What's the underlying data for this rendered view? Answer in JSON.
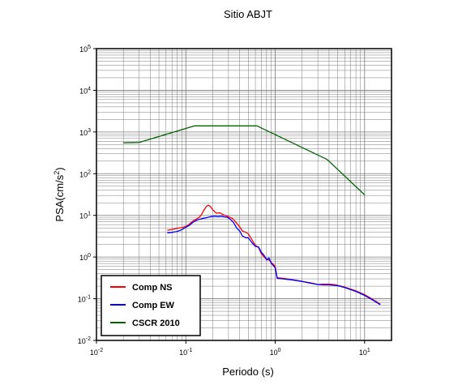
{
  "chart_data": {
    "type": "line",
    "title": "Sitio ABJT",
    "xlabel": "Periodo (s)",
    "ylabel_base": "PSA(cm/s",
    "ylabel_exp": "2",
    "ylabel_close": ")",
    "x_scale": "log",
    "y_scale": "log",
    "xlim": [
      0.01,
      20
    ],
    "ylim": [
      0.01,
      100000
    ],
    "grid": true,
    "legend_position": "bottom-left",
    "x_ticks": [
      {
        "base": "10",
        "exp": "-2",
        "value": 0.01
      },
      {
        "base": "10",
        "exp": "-1",
        "value": 0.1
      },
      {
        "base": "10",
        "exp": "0",
        "value": 1
      },
      {
        "base": "10",
        "exp": "1",
        "value": 10
      }
    ],
    "y_ticks": [
      {
        "base": "10",
        "exp": "-2",
        "value": 0.01
      },
      {
        "base": "10",
        "exp": "-1",
        "value": 0.1
      },
      {
        "base": "10",
        "exp": "0",
        "value": 1
      },
      {
        "base": "10",
        "exp": "1",
        "value": 10
      },
      {
        "base": "10",
        "exp": "2",
        "value": 100
      },
      {
        "base": "10",
        "exp": "3",
        "value": 1000
      },
      {
        "base": "10",
        "exp": "4",
        "value": 10000
      },
      {
        "base": "10",
        "exp": "5",
        "value": 100000
      }
    ],
    "series": [
      {
        "name": "Comp NS",
        "color": "#ff0000",
        "points": [
          [
            0.062,
            4.4
          ],
          [
            0.07,
            4.6
          ],
          [
            0.08,
            4.9
          ],
          [
            0.09,
            5.1
          ],
          [
            0.1,
            5.4
          ],
          [
            0.11,
            6.2
          ],
          [
            0.12,
            7.3
          ],
          [
            0.13,
            8.1
          ],
          [
            0.14,
            8.8
          ],
          [
            0.15,
            10.5
          ],
          [
            0.16,
            13.5
          ],
          [
            0.17,
            16.5
          ],
          [
            0.18,
            17.5
          ],
          [
            0.19,
            16
          ],
          [
            0.2,
            13.5
          ],
          [
            0.22,
            11.3
          ],
          [
            0.24,
            11.5
          ],
          [
            0.26,
            10.5
          ],
          [
            0.28,
            9.8
          ],
          [
            0.3,
            9.3
          ],
          [
            0.33,
            8.5
          ],
          [
            0.36,
            7
          ],
          [
            0.4,
            5.3
          ],
          [
            0.43,
            4.2
          ],
          [
            0.46,
            4.0
          ],
          [
            0.5,
            3.6
          ],
          [
            0.55,
            2.6
          ],
          [
            0.6,
            1.9
          ],
          [
            0.65,
            1.7
          ],
          [
            0.7,
            1.2
          ],
          [
            0.75,
            1.0
          ],
          [
            0.8,
            0.9
          ],
          [
            0.85,
            0.85
          ],
          [
            0.9,
            0.75
          ],
          [
            1.0,
            0.6
          ],
          [
            1.05,
            0.32
          ],
          [
            1.2,
            0.31
          ],
          [
            1.5,
            0.29
          ],
          [
            2.0,
            0.26
          ],
          [
            2.5,
            0.24
          ],
          [
            3.0,
            0.22
          ],
          [
            3.5,
            0.225
          ],
          [
            4.0,
            0.225
          ],
          [
            4.5,
            0.22
          ],
          [
            5.0,
            0.21
          ],
          [
            6.0,
            0.19
          ],
          [
            7.0,
            0.17
          ],
          [
            8.0,
            0.155
          ],
          [
            10.0,
            0.125
          ],
          [
            12.0,
            0.1
          ],
          [
            15.0,
            0.074
          ]
        ]
      },
      {
        "name": "Comp EW",
        "color": "#0000ff",
        "points": [
          [
            0.062,
            3.8
          ],
          [
            0.07,
            3.9
          ],
          [
            0.08,
            4.1
          ],
          [
            0.09,
            4.5
          ],
          [
            0.1,
            5.2
          ],
          [
            0.11,
            5.8
          ],
          [
            0.12,
            6.8
          ],
          [
            0.13,
            7.5
          ],
          [
            0.14,
            8.0
          ],
          [
            0.15,
            8.3
          ],
          [
            0.17,
            8.8
          ],
          [
            0.19,
            9.3
          ],
          [
            0.21,
            9.6
          ],
          [
            0.23,
            9.4
          ],
          [
            0.25,
            9.6
          ],
          [
            0.27,
            9.2
          ],
          [
            0.29,
            9.0
          ],
          [
            0.31,
            8.3
          ],
          [
            0.34,
            6.8
          ],
          [
            0.37,
            5.0
          ],
          [
            0.4,
            4.2
          ],
          [
            0.43,
            3.2
          ],
          [
            0.47,
            2.9
          ],
          [
            0.5,
            2.9
          ],
          [
            0.55,
            2.2
          ],
          [
            0.6,
            1.8
          ],
          [
            0.65,
            1.75
          ],
          [
            0.7,
            1.3
          ],
          [
            0.75,
            1.1
          ],
          [
            0.8,
            0.85
          ],
          [
            0.85,
            0.95
          ],
          [
            0.9,
            0.72
          ],
          [
            1.0,
            0.55
          ],
          [
            1.05,
            0.31
          ],
          [
            1.2,
            0.3
          ],
          [
            1.5,
            0.285
          ],
          [
            2.0,
            0.26
          ],
          [
            2.5,
            0.235
          ],
          [
            3.0,
            0.22
          ],
          [
            3.5,
            0.215
          ],
          [
            4.0,
            0.215
          ],
          [
            4.5,
            0.21
          ],
          [
            5.0,
            0.205
          ],
          [
            6.0,
            0.185
          ],
          [
            7.0,
            0.165
          ],
          [
            8.0,
            0.15
          ],
          [
            10.0,
            0.12
          ],
          [
            12.0,
            0.097
          ],
          [
            15.0,
            0.072
          ]
        ]
      },
      {
        "name": "CSCR 2010",
        "color": "#006400",
        "points": [
          [
            0.02,
            550
          ],
          [
            0.03,
            560
          ],
          [
            0.125,
            1400
          ],
          [
            0.625,
            1400
          ],
          [
            3.8,
            220
          ],
          [
            10.0,
            31
          ]
        ]
      }
    ]
  }
}
